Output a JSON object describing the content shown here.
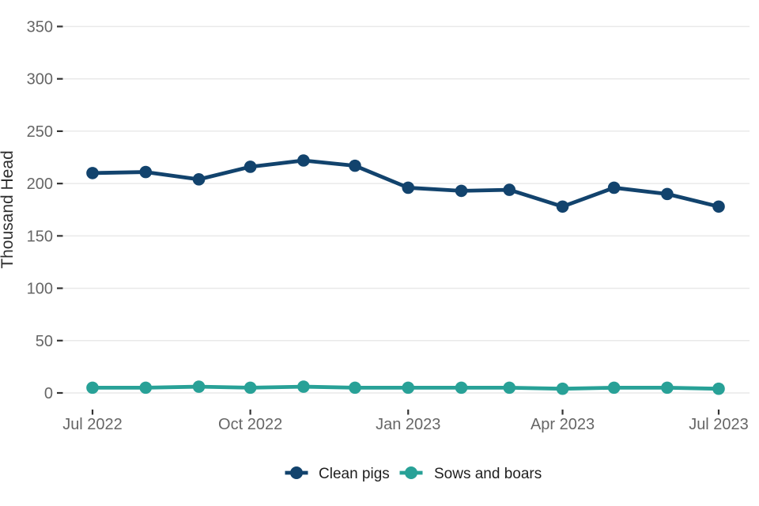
{
  "chart_data": {
    "type": "line",
    "title": "",
    "xlabel": "",
    "ylabel": "Thousand Head",
    "x": [
      "Jul 2022",
      "Aug 2022",
      "Sep 2022",
      "Oct 2022",
      "Nov 2022",
      "Dec 2022",
      "Jan 2023",
      "Feb 2023",
      "Mar 2023",
      "Apr 2023",
      "May 2023",
      "Jun 2023",
      "Jul 2023"
    ],
    "x_tick_labels": [
      "Jul 2022",
      "Oct 2022",
      "Jan 2023",
      "Apr 2023",
      "Jul 2023"
    ],
    "x_tick_indices": [
      0,
      3,
      6,
      9,
      12
    ],
    "y_ticks": [
      0,
      50,
      100,
      150,
      200,
      250,
      300,
      350
    ],
    "ylim": [
      0,
      367
    ],
    "grid": "horizontal-only",
    "legend_position": "bottom-center",
    "series": [
      {
        "name": "Clean pigs",
        "color": "#12436D",
        "values": [
          210,
          211,
          204,
          216,
          222,
          217,
          196,
          193,
          194,
          178,
          196,
          190,
          178
        ]
      },
      {
        "name": "Sows and boars",
        "color": "#28A197",
        "values": [
          5,
          5,
          6,
          5,
          6,
          5,
          5,
          5,
          5,
          4,
          5,
          5,
          4
        ]
      }
    ]
  },
  "colors": {
    "background": "#ffffff",
    "gridline": "#e9e9e9",
    "tick_mark": "#333333",
    "tick_label": "#666666",
    "axis_title": "#2e2e2e",
    "legend_text": "#1f1f1f",
    "series_navy": "#12436D",
    "series_teal": "#28A197"
  }
}
